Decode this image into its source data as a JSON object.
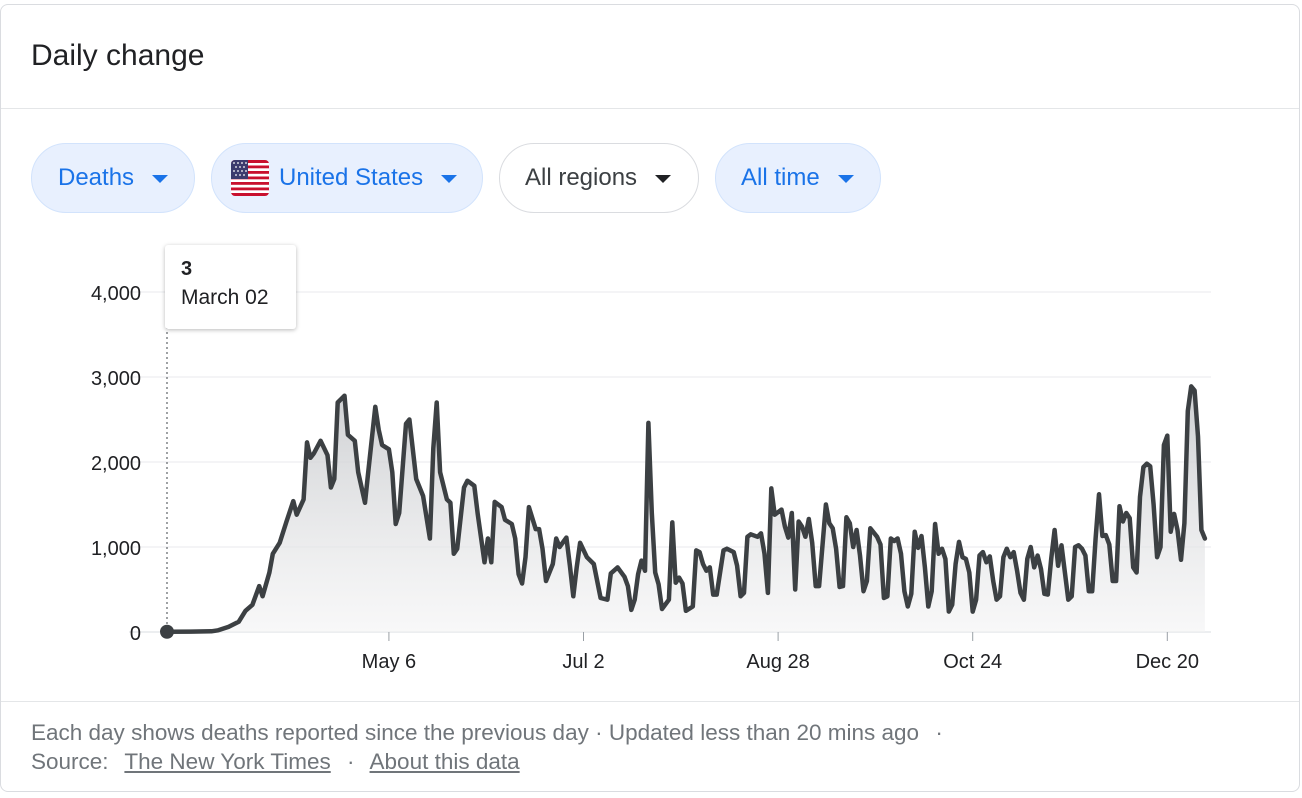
{
  "card": {
    "title": "Daily change"
  },
  "filters": [
    {
      "label": "Deaths",
      "style": "blue",
      "icon": "chevron-down-icon"
    },
    {
      "label": "United States",
      "style": "blue",
      "icon": "us-flag-icon"
    },
    {
      "label": "All regions",
      "style": "plain",
      "icon": "chevron-down-icon"
    },
    {
      "label": "All time",
      "style": "blue",
      "icon": "chevron-down-icon"
    }
  ],
  "tooltip": {
    "value": "3",
    "date": "March 02"
  },
  "footer": {
    "description": "Each day shows deaths reported since the previous day",
    "separator": "·",
    "updated": "Updated less than 20 mins ago",
    "source_label": "Source:",
    "source_link": "The New York Times",
    "about_link": "About this data"
  },
  "colors": {
    "line": "#3c4043",
    "chip_blue_bg": "#e8f0fe",
    "chip_blue_text": "#1a73e8",
    "grid": "#e8eaed",
    "axis_text": "#202124"
  },
  "chart_data": {
    "type": "area",
    "title": "Daily change",
    "xlabel": "",
    "ylabel": "",
    "ylim": [
      0,
      4000
    ],
    "yticks": [
      0,
      1000,
      2000,
      3000,
      4000
    ],
    "ytick_labels": [
      "0",
      "1,000",
      "2,000",
      "3,000",
      "4,000"
    ],
    "xticks": [
      {
        "label": "May 6",
        "day": 65
      },
      {
        "label": "Jul 2",
        "day": 122
      },
      {
        "label": "Aug 28",
        "day": 179
      },
      {
        "label": "Oct 24",
        "day": 236
      },
      {
        "label": "Dec 20",
        "day": 293
      }
    ],
    "x_start": "March 02",
    "x_end_day": 305,
    "grid": true,
    "series": [
      {
        "name": "Deaths",
        "points": [
          [
            0,
            3
          ],
          [
            7,
            5
          ],
          [
            13,
            8
          ],
          [
            15,
            20
          ],
          [
            18,
            60
          ],
          [
            21,
            120
          ],
          [
            23,
            250
          ],
          [
            25,
            320
          ],
          [
            27,
            540
          ],
          [
            28,
            420
          ],
          [
            30,
            700
          ],
          [
            31,
            920
          ],
          [
            33,
            1050
          ],
          [
            35,
            1300
          ],
          [
            37,
            1540
          ],
          [
            38,
            1380
          ],
          [
            40,
            1560
          ],
          [
            41,
            2230
          ],
          [
            42,
            2050
          ],
          [
            43,
            2100
          ],
          [
            45,
            2250
          ],
          [
            47,
            2080
          ],
          [
            48,
            1700
          ],
          [
            49,
            1800
          ],
          [
            50,
            2700
          ],
          [
            52,
            2780
          ],
          [
            53,
            2320
          ],
          [
            55,
            2250
          ],
          [
            56,
            1880
          ],
          [
            58,
            1520
          ],
          [
            59,
            1900
          ],
          [
            61,
            2650
          ],
          [
            62,
            2380
          ],
          [
            63,
            2200
          ],
          [
            65,
            2150
          ],
          [
            66,
            1880
          ],
          [
            67,
            1270
          ],
          [
            68,
            1400
          ],
          [
            70,
            2450
          ],
          [
            71,
            2500
          ],
          [
            73,
            1800
          ],
          [
            75,
            1600
          ],
          [
            77,
            1100
          ],
          [
            78,
            2160
          ],
          [
            79,
            2700
          ],
          [
            80,
            1880
          ],
          [
            82,
            1560
          ],
          [
            83,
            1520
          ],
          [
            84,
            920
          ],
          [
            85,
            980
          ],
          [
            87,
            1700
          ],
          [
            88,
            1780
          ],
          [
            90,
            1720
          ],
          [
            91,
            1390
          ],
          [
            93,
            820
          ],
          [
            94,
            1100
          ],
          [
            95,
            820
          ],
          [
            96,
            1530
          ],
          [
            98,
            1470
          ],
          [
            99,
            1320
          ],
          [
            101,
            1270
          ],
          [
            102,
            1100
          ],
          [
            103,
            680
          ],
          [
            104,
            570
          ],
          [
            105,
            880
          ],
          [
            106,
            1470
          ],
          [
            108,
            1210
          ],
          [
            109,
            1210
          ],
          [
            110,
            980
          ],
          [
            111,
            600
          ],
          [
            113,
            800
          ],
          [
            114,
            1100
          ],
          [
            115,
            1000
          ],
          [
            117,
            1110
          ],
          [
            118,
            780
          ],
          [
            119,
            420
          ],
          [
            120,
            760
          ],
          [
            121,
            1050
          ],
          [
            123,
            880
          ],
          [
            125,
            800
          ],
          [
            127,
            400
          ],
          [
            129,
            380
          ],
          [
            130,
            690
          ],
          [
            132,
            760
          ],
          [
            134,
            650
          ],
          [
            135,
            540
          ],
          [
            136,
            260
          ],
          [
            137,
            380
          ],
          [
            138,
            680
          ],
          [
            139,
            840
          ],
          [
            140,
            720
          ],
          [
            141,
            2460
          ],
          [
            142,
            1400
          ],
          [
            143,
            700
          ],
          [
            144,
            560
          ],
          [
            145,
            270
          ],
          [
            147,
            380
          ],
          [
            148,
            1290
          ],
          [
            149,
            580
          ],
          [
            150,
            640
          ],
          [
            151,
            570
          ],
          [
            152,
            250
          ],
          [
            154,
            300
          ],
          [
            155,
            960
          ],
          [
            156,
            940
          ],
          [
            157,
            800
          ],
          [
            158,
            720
          ],
          [
            159,
            760
          ],
          [
            160,
            440
          ],
          [
            161,
            440
          ],
          [
            163,
            960
          ],
          [
            164,
            980
          ],
          [
            166,
            940
          ],
          [
            167,
            780
          ],
          [
            168,
            420
          ],
          [
            169,
            460
          ],
          [
            170,
            1120
          ],
          [
            171,
            1150
          ],
          [
            173,
            1120
          ],
          [
            174,
            1160
          ],
          [
            175,
            920
          ],
          [
            176,
            460
          ],
          [
            177,
            1690
          ],
          [
            178,
            1380
          ],
          [
            180,
            1440
          ],
          [
            181,
            1240
          ],
          [
            182,
            1110
          ],
          [
            183,
            1400
          ],
          [
            184,
            500
          ],
          [
            185,
            1300
          ],
          [
            186,
            1240
          ],
          [
            187,
            1120
          ],
          [
            188,
            1330
          ],
          [
            189,
            1050
          ],
          [
            190,
            540
          ],
          [
            191,
            540
          ],
          [
            193,
            1500
          ],
          [
            194,
            1280
          ],
          [
            195,
            1220
          ],
          [
            196,
            980
          ],
          [
            197,
            530
          ],
          [
            198,
            540
          ],
          [
            199,
            1350
          ],
          [
            200,
            1280
          ],
          [
            201,
            1000
          ],
          [
            202,
            1200
          ],
          [
            203,
            900
          ],
          [
            204,
            480
          ],
          [
            205,
            600
          ],
          [
            206,
            1220
          ],
          [
            207,
            1170
          ],
          [
            208,
            1120
          ],
          [
            209,
            1030
          ],
          [
            210,
            400
          ],
          [
            211,
            420
          ],
          [
            212,
            1100
          ],
          [
            213,
            1070
          ],
          [
            214,
            1100
          ],
          [
            215,
            920
          ],
          [
            216,
            480
          ],
          [
            217,
            300
          ],
          [
            218,
            450
          ],
          [
            219,
            1180
          ],
          [
            220,
            990
          ],
          [
            221,
            1130
          ],
          [
            222,
            760
          ],
          [
            223,
            300
          ],
          [
            224,
            480
          ],
          [
            225,
            1270
          ],
          [
            226,
            920
          ],
          [
            227,
            980
          ],
          [
            228,
            860
          ],
          [
            229,
            240
          ],
          [
            230,
            320
          ],
          [
            231,
            800
          ],
          [
            232,
            1060
          ],
          [
            233,
            880
          ],
          [
            234,
            860
          ],
          [
            235,
            700
          ],
          [
            236,
            240
          ],
          [
            237,
            380
          ],
          [
            238,
            900
          ],
          [
            239,
            940
          ],
          [
            240,
            820
          ],
          [
            241,
            890
          ],
          [
            242,
            600
          ],
          [
            243,
            380
          ],
          [
            244,
            420
          ],
          [
            245,
            880
          ],
          [
            246,
            980
          ],
          [
            247,
            880
          ],
          [
            248,
            940
          ],
          [
            249,
            720
          ],
          [
            250,
            460
          ],
          [
            251,
            380
          ],
          [
            252,
            860
          ],
          [
            253,
            1000
          ],
          [
            254,
            760
          ],
          [
            255,
            900
          ],
          [
            256,
            740
          ],
          [
            257,
            450
          ],
          [
            258,
            440
          ],
          [
            259,
            860
          ],
          [
            260,
            1200
          ],
          [
            261,
            780
          ],
          [
            262,
            1020
          ],
          [
            263,
            700
          ],
          [
            264,
            380
          ],
          [
            265,
            420
          ],
          [
            266,
            1000
          ],
          [
            267,
            1020
          ],
          [
            268,
            980
          ],
          [
            269,
            900
          ],
          [
            270,
            480
          ],
          [
            271,
            480
          ],
          [
            272,
            1100
          ],
          [
            273,
            1620
          ],
          [
            274,
            1130
          ],
          [
            275,
            1140
          ],
          [
            276,
            1030
          ],
          [
            277,
            600
          ],
          [
            278,
            600
          ],
          [
            279,
            1480
          ],
          [
            280,
            1300
          ],
          [
            281,
            1400
          ],
          [
            282,
            1340
          ],
          [
            283,
            760
          ],
          [
            284,
            700
          ],
          [
            285,
            1590
          ],
          [
            286,
            1940
          ],
          [
            287,
            1980
          ],
          [
            288,
            1950
          ],
          [
            289,
            1500
          ],
          [
            290,
            880
          ],
          [
            291,
            1000
          ],
          [
            292,
            2200
          ],
          [
            293,
            2310
          ],
          [
            294,
            1180
          ],
          [
            295,
            1390
          ],
          [
            296,
            1200
          ],
          [
            297,
            850
          ],
          [
            298,
            1280
          ],
          [
            299,
            2600
          ],
          [
            300,
            2890
          ],
          [
            301,
            2840
          ],
          [
            302,
            2300
          ],
          [
            303,
            1200
          ],
          [
            304,
            1100
          ]
        ]
      }
    ]
  }
}
